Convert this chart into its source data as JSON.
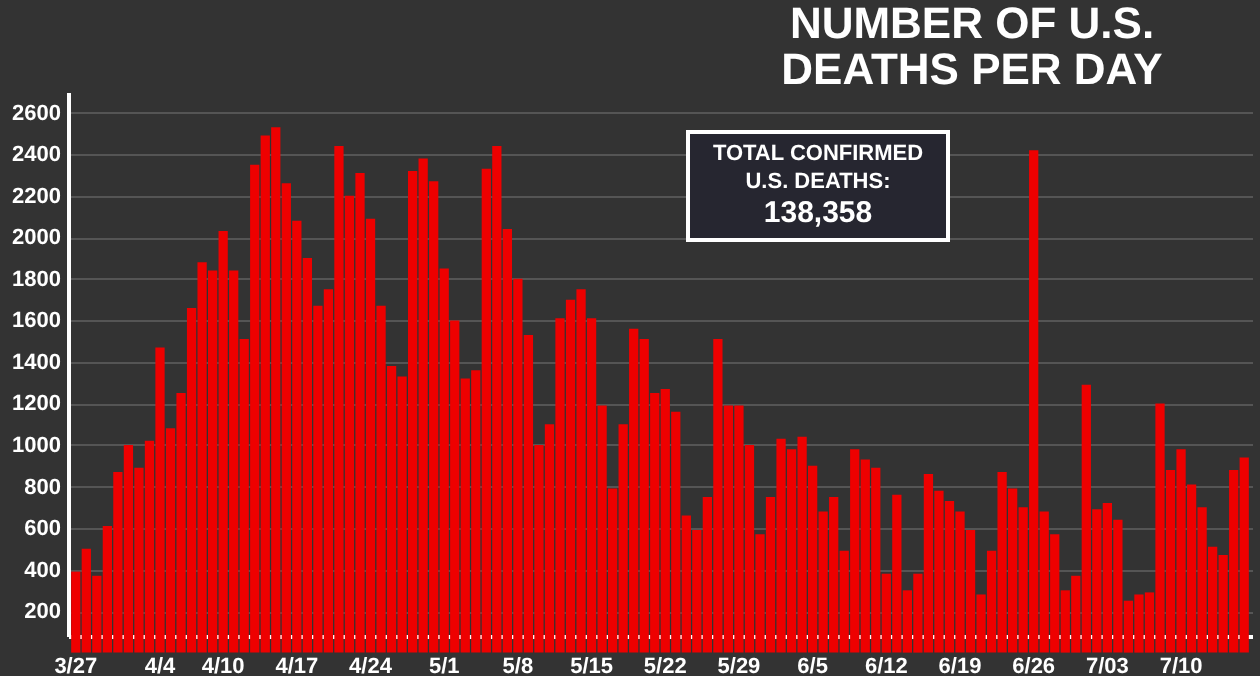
{
  "chart_data": {
    "type": "bar",
    "title": "NUMBER OF U.S. DEATHS PER DAY",
    "categories": [
      "3/27",
      null,
      null,
      null,
      null,
      null,
      null,
      null,
      "4/4",
      null,
      null,
      null,
      null,
      null,
      "4/10",
      null,
      null,
      null,
      null,
      null,
      null,
      "4/17",
      null,
      null,
      null,
      null,
      null,
      null,
      "4/24",
      null,
      null,
      null,
      null,
      null,
      null,
      "5/1",
      null,
      null,
      null,
      null,
      null,
      null,
      "5/8",
      null,
      null,
      null,
      null,
      null,
      null,
      "5/15",
      null,
      null,
      null,
      null,
      null,
      null,
      "5/22",
      null,
      null,
      null,
      null,
      null,
      null,
      "5/29",
      null,
      null,
      null,
      null,
      null,
      null,
      "6/5",
      null,
      null,
      null,
      null,
      null,
      null,
      "6/12",
      null,
      null,
      null,
      null,
      null,
      null,
      "6/19",
      null,
      null,
      null,
      null,
      null,
      null,
      "6/26",
      null,
      null,
      null,
      null,
      null,
      null,
      "7/03",
      null,
      null,
      null,
      null,
      null,
      null,
      "7/10",
      null,
      null,
      null,
      null,
      null,
      null
    ],
    "values": [
      390,
      500,
      370,
      610,
      870,
      1000,
      890,
      1020,
      1470,
      1080,
      1250,
      1660,
      1880,
      1840,
      2030,
      1840,
      1510,
      2350,
      2490,
      2530,
      2260,
      2080,
      1900,
      1670,
      1750,
      2440,
      2200,
      2310,
      2090,
      1670,
      1380,
      1330,
      2320,
      2380,
      2270,
      1850,
      1600,
      1320,
      1360,
      2330,
      2440,
      2040,
      1800,
      1530,
      1000,
      1100,
      1610,
      1700,
      1750,
      1610,
      1190,
      790,
      1100,
      1560,
      1510,
      1250,
      1270,
      1160,
      660,
      590,
      750,
      1510,
      1190,
      1190,
      1000,
      570,
      750,
      1030,
      980,
      1040,
      900,
      680,
      750,
      490,
      980,
      930,
      890,
      380,
      760,
      300,
      380,
      860,
      780,
      730,
      680,
      590,
      280,
      490,
      870,
      790,
      700,
      2420,
      680,
      570,
      300,
      370,
      1290,
      690,
      720,
      640,
      250,
      280,
      290,
      1200,
      880,
      980,
      810,
      700,
      510,
      470,
      880,
      940
    ],
    "color": "#ee0000",
    "ylim": [
      80,
      2700
    ],
    "yticks": [
      200,
      400,
      600,
      800,
      1000,
      1200,
      1400,
      1600,
      1800,
      2000,
      2200,
      2400,
      2600
    ],
    "grid": "y",
    "annotations": [
      "TOTAL CONFIRMED U.S. DEATHS: 138,358"
    ]
  }
}
